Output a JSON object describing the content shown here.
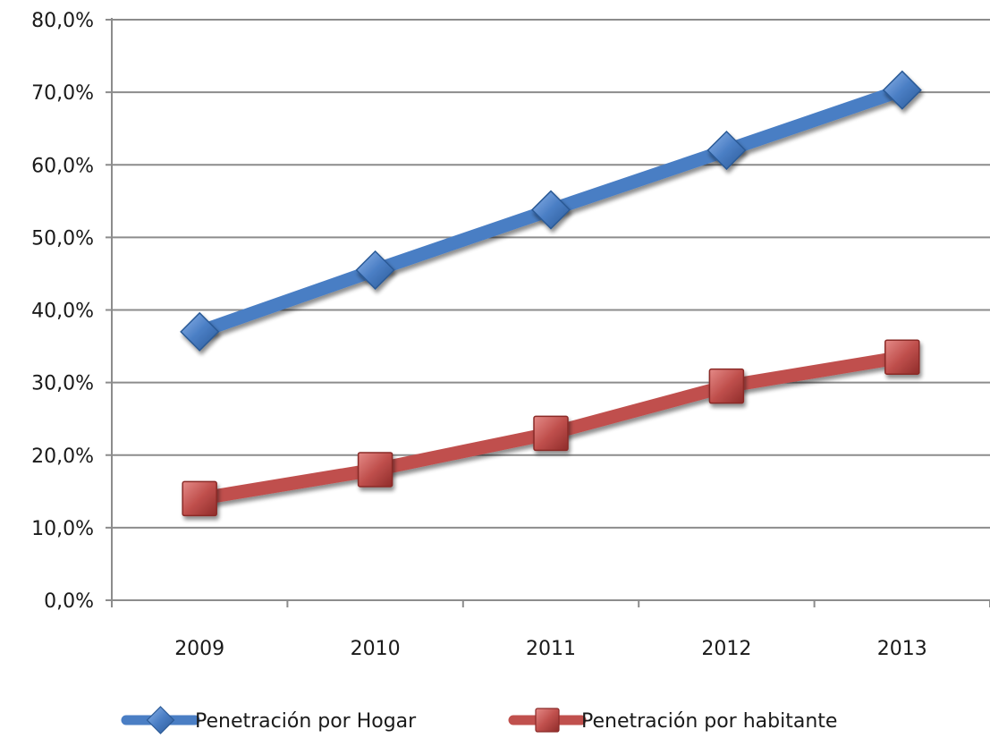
{
  "chart_data": {
    "type": "line",
    "categories": [
      "2009",
      "2010",
      "2011",
      "2012",
      "2013"
    ],
    "ylim": [
      0,
      80
    ],
    "yticks": [
      0,
      10,
      20,
      30,
      40,
      50,
      60,
      70,
      80
    ],
    "ytick_labels": [
      "0,0%",
      "10,0%",
      "20,0%",
      "30,0%",
      "40,0%",
      "50,0%",
      "60,0%",
      "70,0%",
      "80,0%"
    ],
    "grid": true,
    "legend_position": "bottom",
    "series": [
      {
        "name": "Penetración por Hogar",
        "values": [
          37.0,
          45.5,
          53.8,
          62.0,
          70.3
        ],
        "color": "#4a7ec4",
        "marker": "diamond"
      },
      {
        "name": "Penetración por habitante",
        "values": [
          14.0,
          18.0,
          23.0,
          29.5,
          33.5
        ],
        "color": "#c0504d",
        "marker": "square"
      }
    ]
  }
}
